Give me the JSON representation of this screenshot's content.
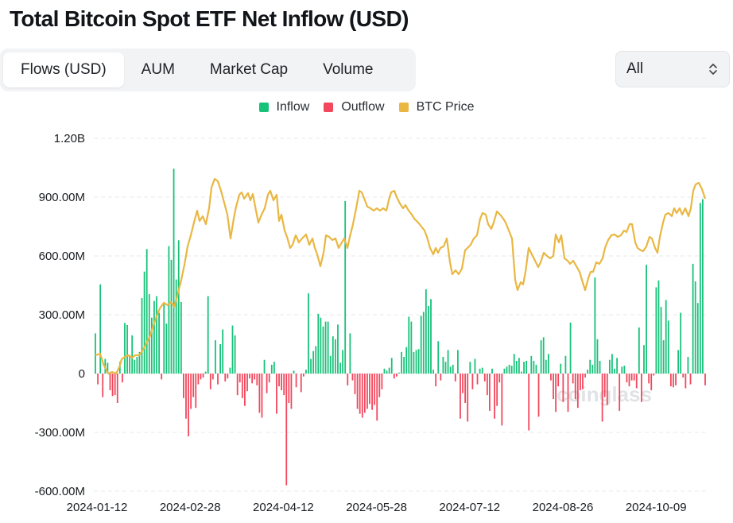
{
  "title": "Total Bitcoin Spot ETF Net Inflow (USD)",
  "tabs": [
    {
      "label": "Flows (USD)",
      "active": true
    },
    {
      "label": "AUM",
      "active": false
    },
    {
      "label": "Market Cap",
      "active": false
    },
    {
      "label": "Volume",
      "active": false
    }
  ],
  "range_select": {
    "value": "All"
  },
  "watermark": "coinglass",
  "colors": {
    "inflow": "#17c279",
    "outflow": "#f2475d",
    "price": "#e9b742",
    "grid": "#e6e8eb"
  },
  "chart_data": {
    "type": "bar",
    "ylim": [
      -600000000,
      1200000000
    ],
    "y_ticks": [
      {
        "value": 1200000000,
        "label": "1.20B"
      },
      {
        "value": 900000000,
        "label": "900.00M"
      },
      {
        "value": 600000000,
        "label": "600.00M"
      },
      {
        "value": 300000000,
        "label": "300.00M"
      },
      {
        "value": 0,
        "label": "0"
      },
      {
        "value": -300000000,
        "label": "-300.00M"
      },
      {
        "value": -600000000,
        "label": "-600.00M"
      }
    ],
    "x_ticks": [
      "2024-01-12",
      "2024-02-28",
      "2024-04-12",
      "2024-05-28",
      "2024-07-12",
      "2024-08-26",
      "2024-10-09"
    ],
    "grid": true,
    "legend_position": "top-center",
    "series": [
      {
        "name": "Inflow",
        "color": "#17c279"
      },
      {
        "name": "Outflow",
        "color": "#f2475d"
      },
      {
        "name": "BTC Price",
        "color": "#e9b742"
      }
    ],
    "flows_millions": [
      205,
      -55,
      455,
      -120,
      75,
      55,
      -85,
      -115,
      -110,
      -150,
      60,
      -45,
      258,
      248,
      95,
      195,
      70,
      85,
      110,
      385,
      520,
      635,
      405,
      285,
      370,
      395,
      310,
      -30,
      360,
      255,
      650,
      580,
      1045,
      480,
      680,
      365,
      -125,
      -230,
      -320,
      -180,
      -120,
      -175,
      -55,
      -30,
      -20,
      10,
      395,
      -80,
      -30,
      170,
      -55,
      150,
      225,
      -40,
      -25,
      30,
      245,
      195,
      -110,
      -45,
      -125,
      -165,
      -90,
      -25,
      -50,
      -30,
      -60,
      -200,
      -225,
      70,
      -100,
      -45,
      45,
      60,
      -205,
      -65,
      -85,
      -110,
      -570,
      -150,
      -180,
      15,
      -70,
      0,
      -95,
      -15,
      20,
      410,
      75,
      115,
      140,
      305,
      285,
      240,
      265,
      265,
      90,
      190,
      175,
      250,
      55,
      120,
      880,
      -60,
      205,
      -35,
      -105,
      -180,
      -205,
      -225,
      -200,
      -180,
      -155,
      -185,
      -160,
      -240,
      -120,
      -80,
      25,
      15,
      30,
      80,
      -25,
      -15,
      5,
      110,
      85,
      135,
      290,
      265,
      110,
      120,
      125,
      295,
      315,
      430,
      345,
      380,
      20,
      -65,
      165,
      -35,
      85,
      60,
      120,
      35,
      45,
      -40,
      120,
      -230,
      -100,
      -150,
      -245,
      60,
      -80,
      75,
      -55,
      25,
      30,
      -40,
      -110,
      -190,
      25,
      -230,
      -165,
      -45,
      -265,
      25,
      35,
      45,
      40,
      100,
      65,
      80,
      10,
      60,
      65,
      -290,
      90,
      65,
      45,
      -220,
      170,
      185,
      70,
      100,
      -35,
      -130,
      -195,
      -65,
      50,
      -145,
      90,
      -195,
      260,
      -50,
      -130,
      -175,
      -85,
      -80,
      -20,
      20,
      70,
      45,
      490,
      175,
      65,
      -245,
      -120,
      -160,
      70,
      100,
      25,
      80,
      -190,
      35,
      40,
      -45,
      -65,
      -35,
      -35,
      -75,
      235,
      -145,
      145,
      555,
      -50,
      -85,
      -10,
      440,
      475,
      340,
      170,
      375,
      270,
      -65,
      -70,
      -60,
      120,
      310,
      -20,
      -75,
      85,
      -55,
      560,
      470,
      360,
      870,
      890,
      -60
    ]
  }
}
